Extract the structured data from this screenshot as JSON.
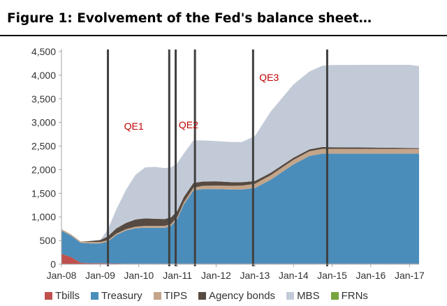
{
  "page": {
    "title": "Figure 1: Evolvement of the Fed's balance sheet…"
  },
  "colors": {
    "tbills": "#c0504d",
    "treasury": "#4a8dbb",
    "tips": "#c4a58a",
    "agency": "#564a41",
    "mbs": "#c3cad7",
    "frns": "#78a43f",
    "qe_line": "#404040",
    "qe_label": "#c00000",
    "axis": "#a6a6a6",
    "text": "#333333"
  },
  "chart_data": {
    "type": "area",
    "stacked": true,
    "title": "Figure 1: Evolvement of the Fed's balance sheet…",
    "xlabel": "",
    "ylabel": "",
    "ylim": [
      0,
      4500
    ],
    "yticks": [
      0,
      500,
      1000,
      1500,
      2000,
      2500,
      3000,
      3500,
      4000,
      4500
    ],
    "ytick_labels": [
      "0",
      "500",
      "1,000",
      "1,500",
      "2,000",
      "2,500",
      "3,000",
      "3,500",
      "4,000",
      "4,500"
    ],
    "xlim": [
      "2008-01-01",
      "2017-04-01"
    ],
    "xticks": [
      "2008-01-01",
      "2009-01-01",
      "2010-01-01",
      "2011-01-01",
      "2012-01-01",
      "2013-01-01",
      "2014-01-01",
      "2015-01-01",
      "2016-01-01",
      "2017-01-01"
    ],
    "xtick_labels": [
      "Jan-08",
      "Jan-09",
      "Jan-10",
      "Jan-11",
      "Jan-12",
      "Jan-13",
      "Jan-14",
      "Jan-15",
      "Jan-16",
      "Jan-17"
    ],
    "grid": false,
    "legend_position": "bottom",
    "x": [
      "2008-01-01",
      "2008-04-01",
      "2008-07-01",
      "2008-10-01",
      "2009-01-01",
      "2009-03-15",
      "2009-06-01",
      "2009-09-01",
      "2009-12-01",
      "2010-03-01",
      "2010-06-01",
      "2010-09-01",
      "2010-11-01",
      "2011-01-01",
      "2011-03-01",
      "2011-06-01",
      "2011-09-01",
      "2012-01-01",
      "2012-06-01",
      "2012-09-01",
      "2013-01-01",
      "2013-06-01",
      "2014-01-01",
      "2014-06-01",
      "2014-10-01",
      "2015-01-01",
      "2016-01-01",
      "2017-01-01",
      "2017-04-01"
    ],
    "series": [
      {
        "name": "Tbills",
        "values": [
          220,
          150,
          30,
          20,
          20,
          18,
          15,
          12,
          10,
          10,
          10,
          10,
          10,
          10,
          10,
          10,
          10,
          10,
          10,
          10,
          10,
          10,
          10,
          10,
          10,
          10,
          10,
          10,
          10
        ]
      },
      {
        "name": "Treasury",
        "values": [
          490,
          450,
          420,
          420,
          420,
          460,
          600,
          700,
          750,
          760,
          760,
          760,
          800,
          950,
          1250,
          1550,
          1580,
          1580,
          1570,
          1570,
          1600,
          1780,
          2100,
          2280,
          2330,
          2330,
          2330,
          2330,
          2330
        ]
      },
      {
        "name": "TIPS",
        "values": [
          30,
          30,
          30,
          30,
          30,
          30,
          30,
          30,
          35,
          40,
          40,
          40,
          40,
          45,
          50,
          60,
          70,
          75,
          80,
          85,
          90,
          95,
          100,
          100,
          100,
          100,
          100,
          100,
          100
        ]
      },
      {
        "name": "Agency bonds",
        "values": [
          0,
          0,
          0,
          20,
          40,
          80,
          110,
          130,
          150,
          160,
          150,
          145,
          140,
          130,
          110,
          100,
          90,
          90,
          75,
          70,
          60,
          50,
          45,
          40,
          40,
          35,
          30,
          20,
          15
        ]
      },
      {
        "name": "MBS",
        "values": [
          0,
          0,
          0,
          0,
          0,
          150,
          400,
          700,
          950,
          1080,
          1100,
          1080,
          1060,
          1010,
          920,
          900,
          870,
          850,
          850,
          850,
          950,
          1300,
          1550,
          1650,
          1720,
          1740,
          1750,
          1760,
          1740
        ]
      },
      {
        "name": "FRNs",
        "values": [
          0,
          0,
          0,
          0,
          0,
          0,
          0,
          0,
          0,
          0,
          0,
          0,
          0,
          0,
          0,
          0,
          0,
          0,
          0,
          0,
          0,
          0,
          0,
          0,
          0,
          0,
          0,
          0,
          0
        ]
      }
    ],
    "qe_lines": [
      "2009-03-15",
      "2010-10-15",
      "2010-12-15",
      "2011-06-15",
      "2012-12-15",
      "2014-11-15"
    ],
    "annotations": [
      {
        "text": "QE1",
        "x": "2009-11-15",
        "y": 2850
      },
      {
        "text": "QE2",
        "x": "2011-04-15",
        "y": 2880
      },
      {
        "text": "QE3",
        "x": "2013-05-15",
        "y": 3880
      }
    ]
  }
}
